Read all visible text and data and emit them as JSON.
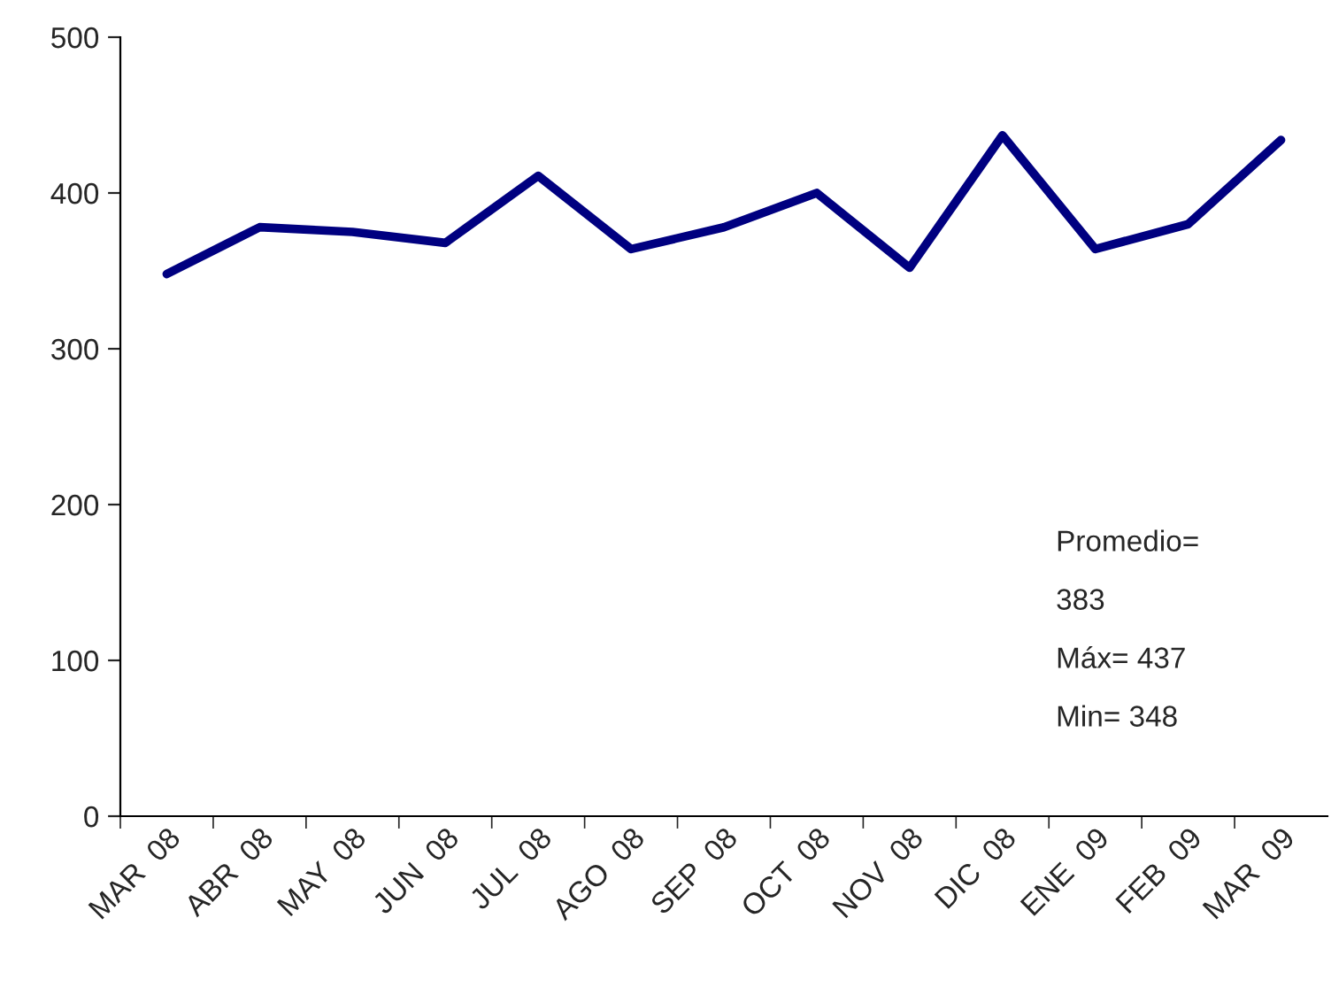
{
  "chart_data": {
    "type": "line",
    "categories": [
      "MAR  08",
      "ABR  08",
      "MAY  08",
      "JUN  08",
      "JUL  08",
      "AGO  08",
      "SEP  08",
      "OCT  08",
      "NOV  08",
      "DIC  08",
      "ENE  09",
      "FEB  09",
      "MAR  09"
    ],
    "series": [
      {
        "color": "#000080",
        "values": [
          348,
          378,
          375,
          368,
          411,
          364,
          378,
          400,
          352,
          437,
          364,
          380,
          434
        ]
      }
    ],
    "ylim": [
      0,
      500
    ],
    "yticks": [
      0,
      100,
      200,
      300,
      400,
      500
    ],
    "grid": false,
    "legend": false,
    "marker": "none",
    "line_style": "solid",
    "annotations": [
      "Promedio=",
      "383",
      "Máx= 437",
      "Min= 348"
    ]
  }
}
